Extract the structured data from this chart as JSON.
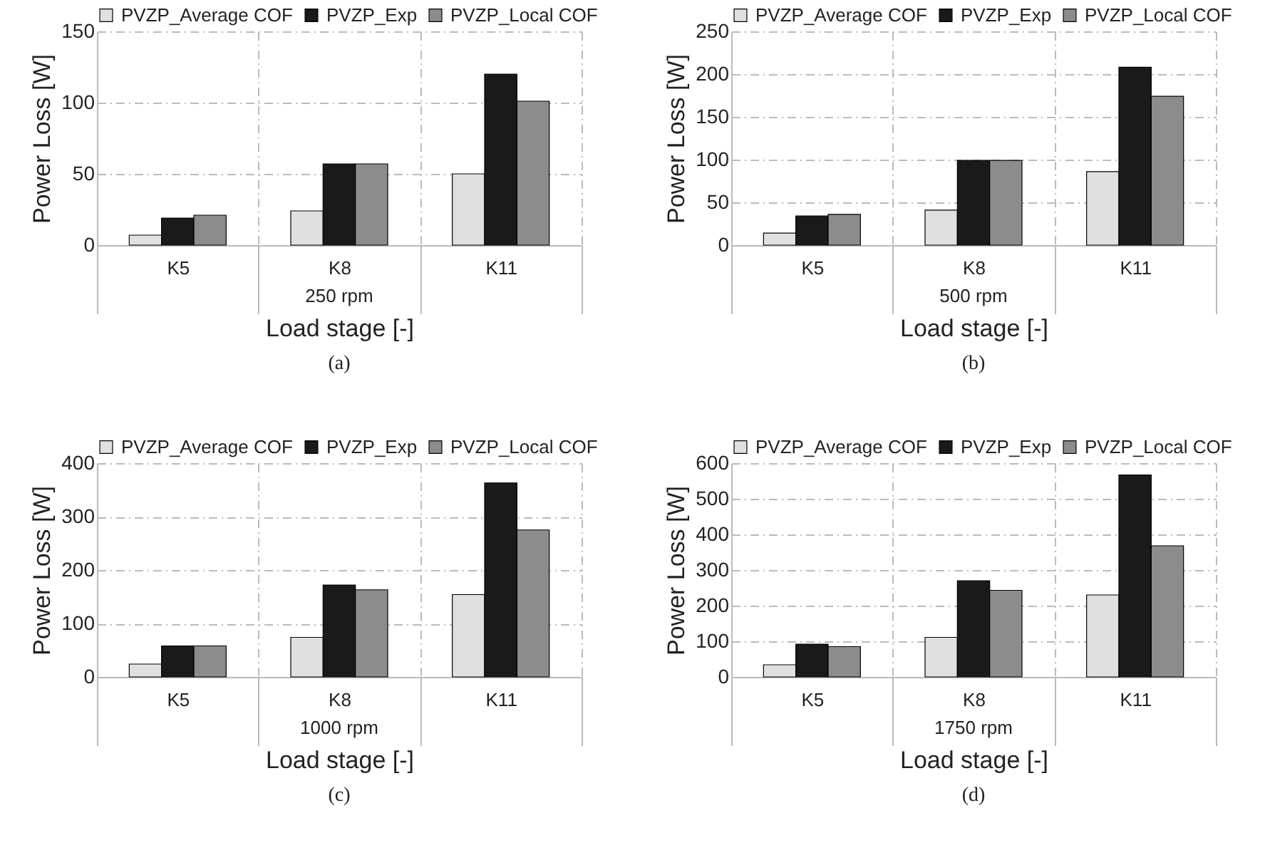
{
  "chart_data": [
    {
      "type": "bar",
      "categories": [
        "K5",
        "K8",
        "K11"
      ],
      "xlabel": "Load stage [-]",
      "ylabel": "Power Loss [W]",
      "ylim": [
        0,
        150
      ],
      "yticks": [
        0,
        50,
        100,
        150
      ],
      "grid": true,
      "legend": "top",
      "annotations": [
        "250 rpm",
        "(a)"
      ],
      "series": [
        {
          "name": "PVZP_Average COF",
          "color": "#e0e0e0",
          "values": [
            7,
            24,
            50
          ]
        },
        {
          "name": "PVZP_Exp",
          "color": "#1a1a1a",
          "values": [
            19,
            57,
            120
          ]
        },
        {
          "name": "PVZP_Local COF",
          "color": "#8c8c8c",
          "values": [
            21,
            57,
            101
          ]
        }
      ]
    },
    {
      "type": "bar",
      "categories": [
        "K5",
        "K8",
        "K11"
      ],
      "xlabel": "Load stage [-]",
      "ylabel": "Power Loss [W]",
      "ylim": [
        0,
        250
      ],
      "yticks": [
        0,
        50,
        100,
        150,
        200,
        250
      ],
      "grid": true,
      "legend": "top",
      "annotations": [
        "500 rpm",
        "(b)"
      ],
      "series": [
        {
          "name": "PVZP_Average COF",
          "color": "#e0e0e0",
          "values": [
            14,
            41,
            86
          ]
        },
        {
          "name": "PVZP_Exp",
          "color": "#1a1a1a",
          "values": [
            34,
            99,
            208
          ]
        },
        {
          "name": "PVZP_Local COF",
          "color": "#8c8c8c",
          "values": [
            36,
            99,
            174
          ]
        }
      ]
    },
    {
      "type": "bar",
      "categories": [
        "K5",
        "K8",
        "K11"
      ],
      "xlabel": "Load stage [-]",
      "ylabel": "Power Loss [W]",
      "ylim": [
        0,
        400
      ],
      "yticks": [
        0,
        100,
        200,
        300,
        400
      ],
      "grid": true,
      "legend": "top",
      "annotations": [
        "1000 rpm",
        "(c)"
      ],
      "series": [
        {
          "name": "PVZP_Average COF",
          "color": "#e0e0e0",
          "values": [
            24,
            74,
            154
          ]
        },
        {
          "name": "PVZP_Exp",
          "color": "#1a1a1a",
          "values": [
            58,
            172,
            363
          ]
        },
        {
          "name": "PVZP_Local COF",
          "color": "#8c8c8c",
          "values": [
            58,
            163,
            275
          ]
        }
      ]
    },
    {
      "type": "bar",
      "categories": [
        "K5",
        "K8",
        "K11"
      ],
      "xlabel": "Load stage [-]",
      "ylabel": "Power Loss [W]",
      "ylim": [
        0,
        600
      ],
      "yticks": [
        0,
        100,
        200,
        300,
        400,
        500,
        600
      ],
      "grid": true,
      "legend": "top",
      "annotations": [
        "1750 rpm",
        "(d)"
      ],
      "series": [
        {
          "name": "PVZP_Average COF",
          "color": "#e0e0e0",
          "values": [
            34,
            111,
            230
          ]
        },
        {
          "name": "PVZP_Exp",
          "color": "#1a1a1a",
          "values": [
            92,
            270,
            567
          ]
        },
        {
          "name": "PVZP_Local COF",
          "color": "#8c8c8c",
          "values": [
            85,
            243,
            368
          ]
        }
      ]
    }
  ]
}
